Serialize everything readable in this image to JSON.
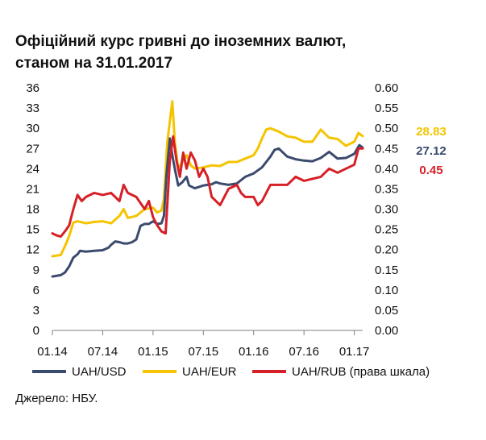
{
  "title_lines": [
    "Офіційний курс гривні до іноземних валют,",
    "станом на 31.01.2017"
  ],
  "source": "Джерело: НБУ.",
  "chart_data": {
    "type": "line",
    "title": "Офіційний курс гривні до іноземних валют, станом на 31.01.2017",
    "x_ticks": [
      "01.14",
      "07.14",
      "01.15",
      "07.15",
      "01.16",
      "07.16",
      "01.17"
    ],
    "x_range": [
      0,
      37
    ],
    "left_axis": {
      "ticks": [
        "0",
        "3",
        "6",
        "9",
        "12",
        "15",
        "18",
        "21",
        "24",
        "27",
        "30",
        "33",
        "36"
      ],
      "range": [
        0,
        36
      ]
    },
    "right_axis": {
      "ticks": [
        "0.00",
        "0.05",
        "0.10",
        "0.15",
        "0.20",
        "0.25",
        "0.30",
        "0.35",
        "0.40",
        "0.45",
        "0.50",
        "0.55",
        "0.60"
      ],
      "range": [
        0,
        0.6
      ]
    },
    "series": [
      {
        "name": "UAH/USD",
        "axis": "left",
        "color": "#3b4b6e",
        "end_label": "27.12",
        "points": [
          [
            0,
            8
          ],
          [
            1,
            8.2
          ],
          [
            1.5,
            8.6
          ],
          [
            2,
            9.5
          ],
          [
            2.5,
            10.8
          ],
          [
            3,
            11.3
          ],
          [
            3.3,
            11.8
          ],
          [
            4,
            11.7
          ],
          [
            5,
            11.8
          ],
          [
            6,
            11.9
          ],
          [
            6.7,
            12.3
          ],
          [
            7,
            12.7
          ],
          [
            7.5,
            13.2
          ],
          [
            8,
            13.1
          ],
          [
            8.5,
            12.9
          ],
          [
            9,
            12.9
          ],
          [
            9.5,
            13.1
          ],
          [
            10,
            13.5
          ],
          [
            10.5,
            15.5
          ],
          [
            11,
            15.8
          ],
          [
            11.5,
            15.8
          ],
          [
            12,
            16.2
          ],
          [
            12.5,
            15.8
          ],
          [
            13,
            15.9
          ],
          [
            13.3,
            17
          ],
          [
            13.6,
            23
          ],
          [
            14,
            28.5
          ],
          [
            14.3,
            26
          ],
          [
            14.6,
            24
          ],
          [
            15,
            21.5
          ],
          [
            15.5,
            22
          ],
          [
            16,
            22.8
          ],
          [
            16.3,
            21.5
          ],
          [
            16.8,
            21.2
          ],
          [
            17,
            21.1
          ],
          [
            18,
            21.5
          ],
          [
            19,
            21.7
          ],
          [
            19.5,
            22
          ],
          [
            20,
            21.8
          ],
          [
            21,
            21.6
          ],
          [
            22,
            21.8
          ],
          [
            22.5,
            22.3
          ],
          [
            23,
            22.8
          ],
          [
            24,
            23.3
          ],
          [
            25,
            24.2
          ],
          [
            25.5,
            25
          ],
          [
            26,
            25.8
          ],
          [
            26.5,
            26.8
          ],
          [
            27,
            27
          ],
          [
            27.5,
            26.4
          ],
          [
            28,
            25.8
          ],
          [
            29,
            25.4
          ],
          [
            30,
            25.2
          ],
          [
            31,
            25.1
          ],
          [
            32,
            25.6
          ],
          [
            33,
            26.5
          ],
          [
            34,
            25.5
          ],
          [
            35,
            25.6
          ],
          [
            36,
            26.2
          ],
          [
            36.6,
            27.5
          ],
          [
            37,
            27.12
          ]
        ]
      },
      {
        "name": "UAH/EUR",
        "axis": "left",
        "color": "#f5c400",
        "end_label": "28.83",
        "points": [
          [
            0,
            11
          ],
          [
            1,
            11.2
          ],
          [
            1.5,
            12.5
          ],
          [
            2,
            14
          ],
          [
            2.5,
            16
          ],
          [
            3,
            16.2
          ],
          [
            4,
            15.9
          ],
          [
            5,
            16.1
          ],
          [
            6,
            16.2
          ],
          [
            7,
            15.9
          ],
          [
            8,
            17
          ],
          [
            8.5,
            18
          ],
          [
            9,
            16.7
          ],
          [
            10,
            17
          ],
          [
            11,
            18
          ],
          [
            12,
            18.2
          ],
          [
            12.5,
            17.5
          ],
          [
            13,
            17.8
          ],
          [
            13.3,
            19.5
          ],
          [
            13.7,
            28
          ],
          [
            14,
            31
          ],
          [
            14.3,
            34
          ],
          [
            14.6,
            28
          ],
          [
            15,
            24
          ],
          [
            15.5,
            25
          ],
          [
            16,
            26
          ],
          [
            16.5,
            24.5
          ],
          [
            17,
            24
          ],
          [
            18,
            24.2
          ],
          [
            19,
            24.5
          ],
          [
            20,
            24.4
          ],
          [
            21,
            25
          ],
          [
            22,
            25
          ],
          [
            23,
            25.5
          ],
          [
            24,
            26
          ],
          [
            24.5,
            27
          ],
          [
            25,
            28.5
          ],
          [
            25.5,
            29.8
          ],
          [
            26,
            30
          ],
          [
            27,
            29.5
          ],
          [
            28,
            28.8
          ],
          [
            29,
            28.6
          ],
          [
            30,
            28
          ],
          [
            31,
            28
          ],
          [
            32,
            29.8
          ],
          [
            33,
            28.6
          ],
          [
            34,
            28.4
          ],
          [
            35,
            27.4
          ],
          [
            36,
            28
          ],
          [
            36.5,
            29.3
          ],
          [
            37,
            28.83
          ]
        ]
      },
      {
        "name": "UAH/RUB (права шкала)",
        "axis": "right",
        "color": "#d62027",
        "end_label": "0.45",
        "points": [
          [
            0,
            0.24
          ],
          [
            0.5,
            0.235
          ],
          [
            1,
            0.232
          ],
          [
            1.5,
            0.245
          ],
          [
            2,
            0.26
          ],
          [
            2.5,
            0.3
          ],
          [
            3,
            0.335
          ],
          [
            3.5,
            0.32
          ],
          [
            4,
            0.33
          ],
          [
            5,
            0.34
          ],
          [
            6,
            0.335
          ],
          [
            7,
            0.34
          ],
          [
            8,
            0.32
          ],
          [
            8.5,
            0.36
          ],
          [
            9,
            0.34
          ],
          [
            10,
            0.33
          ],
          [
            11,
            0.3
          ],
          [
            11.5,
            0.32
          ],
          [
            12,
            0.28
          ],
          [
            12.5,
            0.26
          ],
          [
            13,
            0.245
          ],
          [
            13.5,
            0.24
          ],
          [
            14,
            0.42
          ],
          [
            14.4,
            0.48
          ],
          [
            14.8,
            0.42
          ],
          [
            15.2,
            0.38
          ],
          [
            15.6,
            0.44
          ],
          [
            16,
            0.4
          ],
          [
            16.5,
            0.44
          ],
          [
            17,
            0.42
          ],
          [
            17.5,
            0.38
          ],
          [
            18,
            0.4
          ],
          [
            18.5,
            0.38
          ],
          [
            19,
            0.33
          ],
          [
            20,
            0.31
          ],
          [
            20.5,
            0.33
          ],
          [
            21,
            0.35
          ],
          [
            22,
            0.36
          ],
          [
            22.5,
            0.34
          ],
          [
            23,
            0.33
          ],
          [
            24,
            0.33
          ],
          [
            24.5,
            0.31
          ],
          [
            25,
            0.32
          ],
          [
            25.5,
            0.34
          ],
          [
            26,
            0.36
          ],
          [
            27,
            0.36
          ],
          [
            28,
            0.36
          ],
          [
            29,
            0.38
          ],
          [
            30,
            0.37
          ],
          [
            31,
            0.375
          ],
          [
            32,
            0.38
          ],
          [
            33,
            0.4
          ],
          [
            34,
            0.39
          ],
          [
            35,
            0.4
          ],
          [
            36,
            0.41
          ],
          [
            36.5,
            0.45
          ],
          [
            37,
            0.45
          ]
        ]
      }
    ]
  }
}
